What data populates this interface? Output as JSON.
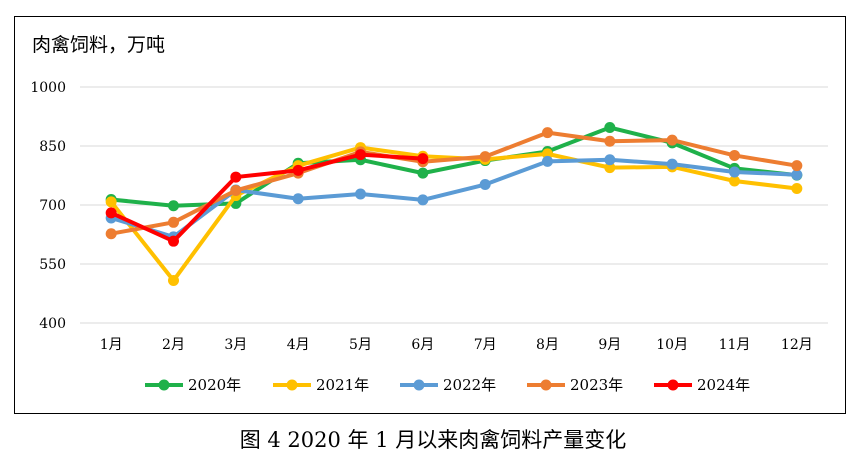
{
  "caption": "图 4  2020 年 1 月以来肉禽饲料产量变化",
  "chart_data": {
    "type": "line",
    "title": "肉禽饲料，万吨",
    "categories": [
      "1月",
      "2月",
      "3月",
      "4月",
      "5月",
      "6月",
      "7月",
      "8月",
      "9月",
      "10月",
      "11月",
      "12月"
    ],
    "ylim": [
      400,
      1000
    ],
    "yticks": [
      400,
      550,
      700,
      850,
      1000
    ],
    "grid": true,
    "legend_position": "bottom",
    "series": [
      {
        "name": "2020年",
        "color": "#1fb14a",
        "values": [
          714,
          698,
          704,
          806,
          815,
          781,
          813,
          836,
          897,
          858,
          793,
          776
        ]
      },
      {
        "name": "2021年",
        "color": "#ffc000",
        "values": [
          708,
          508,
          724,
          800,
          846,
          824,
          816,
          830,
          795,
          797,
          761,
          742
        ]
      },
      {
        "name": "2022年",
        "color": "#5b9bd5",
        "values": [
          667,
          619,
          738,
          716,
          728,
          713,
          752,
          811,
          815,
          804,
          784,
          777
        ]
      },
      {
        "name": "2023年",
        "color": "#ed7d31",
        "values": [
          627,
          656,
          737,
          781,
          835,
          810,
          823,
          884,
          862,
          865,
          826,
          800
        ]
      },
      {
        "name": "2024年",
        "color": "#ff0000",
        "values": [
          680,
          608,
          771,
          788,
          828,
          818,
          null,
          null,
          null,
          null,
          null,
          null
        ]
      }
    ]
  }
}
